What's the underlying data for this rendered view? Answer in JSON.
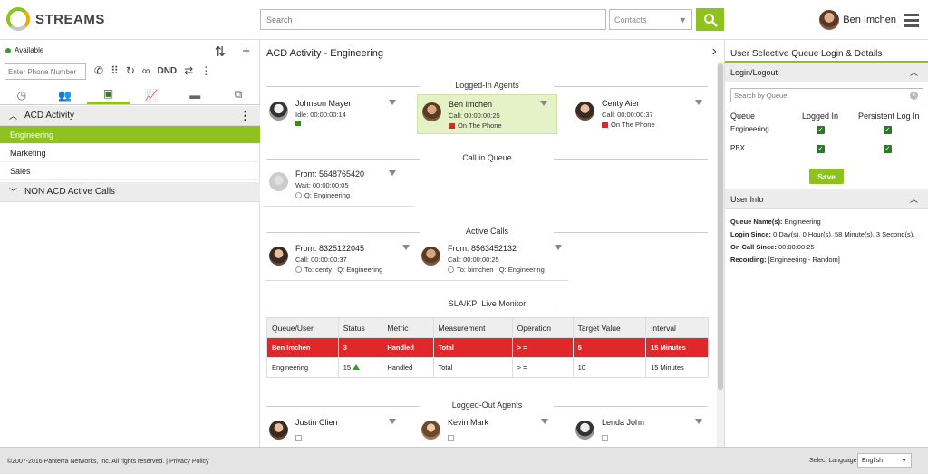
{
  "header": {
    "logo": "STREAMS",
    "search_placeholder": "Search",
    "contacts_label": "Contacts",
    "user_name": "Ben Imchen"
  },
  "left": {
    "status": "Available",
    "phone_placeholder": "Enter Phone Number",
    "dnd": "DND",
    "acd_header": "ACD Activity",
    "queues": [
      "Engineering",
      "Marketing",
      "Sales"
    ],
    "non_acd_header": "NON ACD Active Calls"
  },
  "mid": {
    "title": "ACD Activity - Engineering",
    "logged_in_label": "Logged-In Agents",
    "agents": [
      {
        "name": "Johnson Mayer",
        "sub": "Idle: 00:00:00:14",
        "status": ""
      },
      {
        "name": "Ben Imchen",
        "sub": "Call: 00:00:00:25",
        "status": "On The Phone"
      },
      {
        "name": "Centy Aier",
        "sub": "Call: 00:00:00:37",
        "status": "On The Phone"
      }
    ],
    "queue_label": "Call in Queue",
    "queue_call": {
      "from": "From: 5648765420",
      "wait": "Wait: 00:00:00:05",
      "queue": "Q: Engineering"
    },
    "active_label": "Active Calls",
    "active_calls": [
      {
        "from": "From: 8325122045",
        "call": "Call: 00:00:00:37",
        "to": "To: centy",
        "queue": "Q: Engineering"
      },
      {
        "from": "From: 8563452132",
        "call": "Call: 00:00:00:25",
        "to": "To: bimchen",
        "queue": "Q: Engineering"
      }
    ],
    "sla_label": "SLA/KPI Live Monitor",
    "sla_headers": [
      "Queue/User",
      "Status",
      "Metric",
      "Measurement",
      "Operation",
      "Target Value",
      "Interval"
    ],
    "sla_rows": [
      [
        "Ben Imchen",
        "3",
        "Handled",
        "Total",
        "> =",
        "5",
        "15 Minutes"
      ],
      [
        "Engineering",
        "15",
        "Handled",
        "Total",
        "> =",
        "10",
        "15 Minutes"
      ]
    ],
    "logged_out_label": "Logged-Out Agents",
    "logged_out": [
      "Justin Clien",
      "Kevin Mark",
      "Lenda John"
    ]
  },
  "right": {
    "title": "User Selective Queue Login & Details",
    "login_header": "Login/Logout",
    "search_placeholder": "Search by Queue",
    "col_queue": "Queue",
    "col_logged": "Logged In",
    "col_persist": "Persistent Log In",
    "rows": [
      "Engineering",
      "PBX"
    ],
    "save": "Save",
    "info_header": "User Info",
    "info": [
      {
        "k": "Queue Name(s):",
        "v": " Engineering"
      },
      {
        "k": "Login Since:",
        "v": " 0 Day(s), 0 Hour(s), 58 Minute(s), 3 Second(s)."
      },
      {
        "k": "On Call Since:",
        "v": " 00:00:00:25"
      },
      {
        "k": "Recording:",
        "v": " [Engineering - Random]"
      }
    ]
  },
  "footer": {
    "copyright": "©2007-2016 Panterra Networks, Inc. All rights reserved. | Privacy Policy",
    "lang_label": "Select Language:",
    "lang": "English"
  },
  "colors": {
    "accent": "#8dc21f",
    "alert": "#e0282a"
  }
}
